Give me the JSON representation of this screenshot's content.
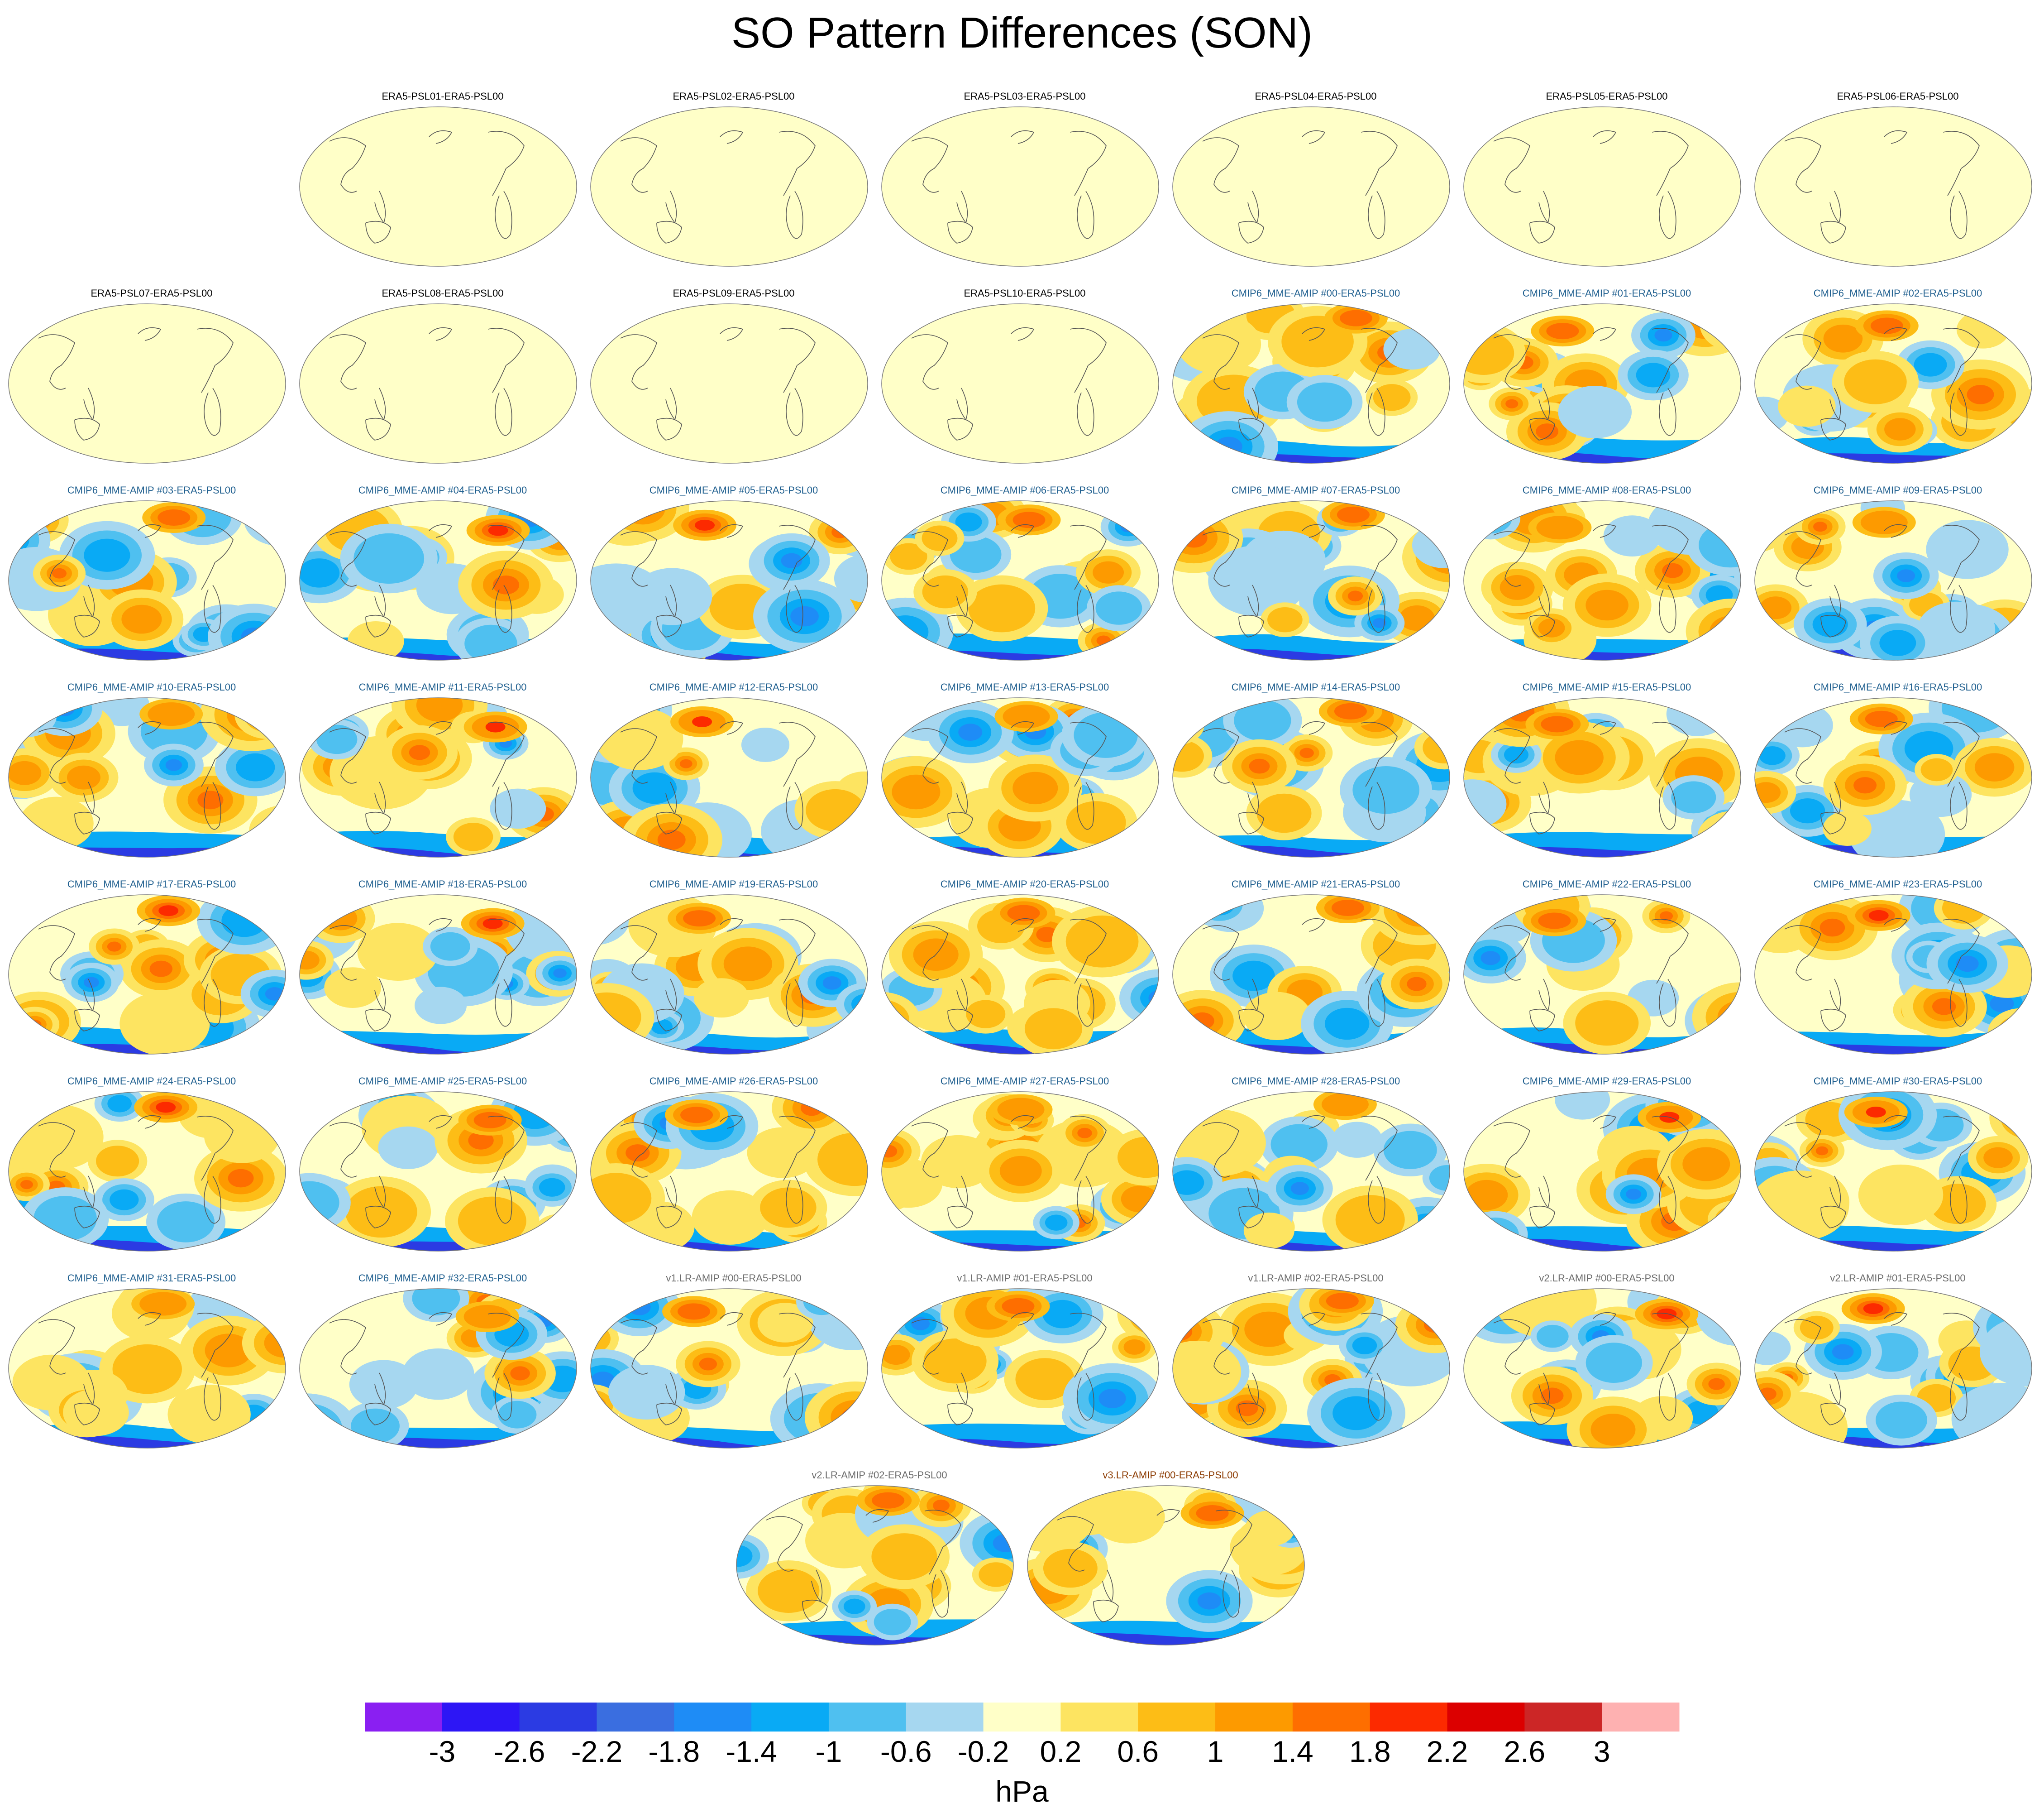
{
  "title": "SO Pattern Differences (SON)",
  "colorbar": {
    "units": "hPa",
    "labels": [
      "-3",
      "-2.6",
      "-2.2",
      "-1.8",
      "-1.4",
      "-1",
      "-0.6",
      "-0.2",
      "0.2",
      "0.6",
      "1",
      "1.4",
      "1.8",
      "2.2",
      "2.6",
      "3"
    ],
    "colors": [
      "#8a1ff2",
      "#2d16f5",
      "#2b3be3",
      "#3a6ee0",
      "#1e8cf6",
      "#09aaf5",
      "#4fc0f0",
      "#a6d7f0",
      "#ffffc8",
      "#fde461",
      "#fdbd16",
      "#fd9a00",
      "#fe6e00",
      "#fc2a00",
      "#dc0000",
      "#cc2626",
      "#feb1b1"
    ]
  },
  "chart_data": {
    "type": "heatmap",
    "description_units": "hPa",
    "value_range": [
      -3,
      3
    ],
    "contour_levels": [
      -3,
      -2.6,
      -2.2,
      -1.8,
      -1.4,
      -1,
      -0.6,
      -0.2,
      0.2,
      0.6,
      1,
      1.4,
      1.8,
      2.2,
      2.6,
      3
    ],
    "panels": [
      {
        "title": "ERA5-PSL01-ERA5-PSL00",
        "group": "era5",
        "empty": true
      },
      {
        "title": "ERA5-PSL02-ERA5-PSL00",
        "group": "era5",
        "empty": true
      },
      {
        "title": "ERA5-PSL03-ERA5-PSL00",
        "group": "era5",
        "empty": true
      },
      {
        "title": "ERA5-PSL04-ERA5-PSL00",
        "group": "era5",
        "empty": true
      },
      {
        "title": "ERA5-PSL05-ERA5-PSL00",
        "group": "era5",
        "empty": true
      },
      {
        "title": "ERA5-PSL06-ERA5-PSL00",
        "group": "era5",
        "empty": true
      },
      {
        "title": "ERA5-PSL07-ERA5-PSL00",
        "group": "era5",
        "empty": true
      },
      {
        "title": "ERA5-PSL08-ERA5-PSL00",
        "group": "era5",
        "empty": true
      },
      {
        "title": "ERA5-PSL09-ERA5-PSL00",
        "group": "era5",
        "empty": true
      },
      {
        "title": "ERA5-PSL10-ERA5-PSL00",
        "group": "era5",
        "empty": true
      },
      {
        "title": "CMIP6_MME-AMIP  #00-ERA5-PSL00",
        "group": "cmip6",
        "empty": false
      },
      {
        "title": "CMIP6_MME-AMIP  #01-ERA5-PSL00",
        "group": "cmip6",
        "empty": false
      },
      {
        "title": "CMIP6_MME-AMIP  #02-ERA5-PSL00",
        "group": "cmip6",
        "empty": false
      },
      {
        "title": "CMIP6_MME-AMIP  #03-ERA5-PSL00",
        "group": "cmip6",
        "empty": false
      },
      {
        "title": "CMIP6_MME-AMIP  #04-ERA5-PSL00",
        "group": "cmip6",
        "empty": false
      },
      {
        "title": "CMIP6_MME-AMIP  #05-ERA5-PSL00",
        "group": "cmip6",
        "empty": false
      },
      {
        "title": "CMIP6_MME-AMIP  #06-ERA5-PSL00",
        "group": "cmip6",
        "empty": false
      },
      {
        "title": "CMIP6_MME-AMIP  #07-ERA5-PSL00",
        "group": "cmip6",
        "empty": false
      },
      {
        "title": "CMIP6_MME-AMIP  #08-ERA5-PSL00",
        "group": "cmip6",
        "empty": false
      },
      {
        "title": "CMIP6_MME-AMIP  #09-ERA5-PSL00",
        "group": "cmip6",
        "empty": false
      },
      {
        "title": "CMIP6_MME-AMIP  #10-ERA5-PSL00",
        "group": "cmip6",
        "empty": false
      },
      {
        "title": "CMIP6_MME-AMIP  #11-ERA5-PSL00",
        "group": "cmip6",
        "empty": false
      },
      {
        "title": "CMIP6_MME-AMIP  #12-ERA5-PSL00",
        "group": "cmip6",
        "empty": false
      },
      {
        "title": "CMIP6_MME-AMIP  #13-ERA5-PSL00",
        "group": "cmip6",
        "empty": false
      },
      {
        "title": "CMIP6_MME-AMIP  #14-ERA5-PSL00",
        "group": "cmip6",
        "empty": false
      },
      {
        "title": "CMIP6_MME-AMIP  #15-ERA5-PSL00",
        "group": "cmip6",
        "empty": false
      },
      {
        "title": "CMIP6_MME-AMIP  #16-ERA5-PSL00",
        "group": "cmip6",
        "empty": false
      },
      {
        "title": "CMIP6_MME-AMIP  #17-ERA5-PSL00",
        "group": "cmip6",
        "empty": false
      },
      {
        "title": "CMIP6_MME-AMIP  #18-ERA5-PSL00",
        "group": "cmip6",
        "empty": false
      },
      {
        "title": "CMIP6_MME-AMIP  #19-ERA5-PSL00",
        "group": "cmip6",
        "empty": false
      },
      {
        "title": "CMIP6_MME-AMIP  #20-ERA5-PSL00",
        "group": "cmip6",
        "empty": false
      },
      {
        "title": "CMIP6_MME-AMIP  #21-ERA5-PSL00",
        "group": "cmip6",
        "empty": false
      },
      {
        "title": "CMIP6_MME-AMIP  #22-ERA5-PSL00",
        "group": "cmip6",
        "empty": false
      },
      {
        "title": "CMIP6_MME-AMIP  #23-ERA5-PSL00",
        "group": "cmip6",
        "empty": false
      },
      {
        "title": "CMIP6_MME-AMIP  #24-ERA5-PSL00",
        "group": "cmip6",
        "empty": false
      },
      {
        "title": "CMIP6_MME-AMIP  #25-ERA5-PSL00",
        "group": "cmip6",
        "empty": false
      },
      {
        "title": "CMIP6_MME-AMIP  #26-ERA5-PSL00",
        "group": "cmip6",
        "empty": false
      },
      {
        "title": "CMIP6_MME-AMIP  #27-ERA5-PSL00",
        "group": "cmip6",
        "empty": false
      },
      {
        "title": "CMIP6_MME-AMIP  #28-ERA5-PSL00",
        "group": "cmip6",
        "empty": false
      },
      {
        "title": "CMIP6_MME-AMIP  #29-ERA5-PSL00",
        "group": "cmip6",
        "empty": false
      },
      {
        "title": "CMIP6_MME-AMIP  #30-ERA5-PSL00",
        "group": "cmip6",
        "empty": false
      },
      {
        "title": "CMIP6_MME-AMIP  #31-ERA5-PSL00",
        "group": "cmip6",
        "empty": false
      },
      {
        "title": "CMIP6_MME-AMIP  #32-ERA5-PSL00",
        "group": "cmip6",
        "empty": false
      },
      {
        "title": "v1.LR-AMIP  #00-ERA5-PSL00",
        "group": "v1",
        "empty": false
      },
      {
        "title": "v1.LR-AMIP  #01-ERA5-PSL00",
        "group": "v1",
        "empty": false
      },
      {
        "title": "v1.LR-AMIP  #02-ERA5-PSL00",
        "group": "v1",
        "empty": false
      },
      {
        "title": "v2.LR-AMIP  #00-ERA5-PSL00",
        "group": "v2",
        "empty": false
      },
      {
        "title": "v2.LR-AMIP  #01-ERA5-PSL00",
        "group": "v2",
        "empty": false
      },
      {
        "title": "v2.LR-AMIP  #02-ERA5-PSL00",
        "group": "v2",
        "empty": false
      },
      {
        "title": "v3.LR-AMIP  #00-ERA5-PSL00",
        "group": "v3",
        "empty": false
      }
    ]
  },
  "group_colors": {
    "era5": "#000000",
    "cmip6": "#1f5f8f",
    "v1": "#6b6b6b",
    "v2": "#6b6b6b",
    "v3": "#8b3a00"
  }
}
